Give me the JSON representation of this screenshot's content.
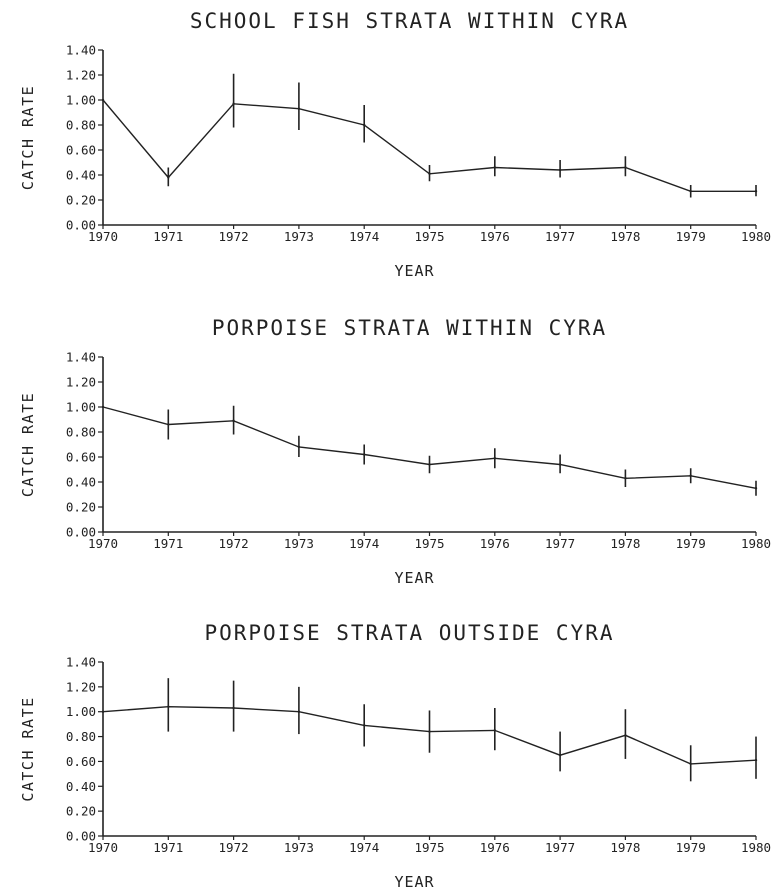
{
  "chart_data": [
    {
      "type": "line",
      "title": "SCHOOL FISH STRATA WITHIN CYRA",
      "xlabel": "YEAR",
      "ylabel": "CATCH RATE",
      "x": [
        1970,
        1971,
        1972,
        1973,
        1974,
        1975,
        1976,
        1977,
        1978,
        1979,
        1980
      ],
      "x_tick_labels": [
        "1970",
        "1971",
        "1972",
        "1973",
        "1974",
        "1975",
        "1976",
        "1977",
        "1978",
        "1979",
        "1980"
      ],
      "y_tick_labels": [
        "0.00",
        "0.20",
        "0.40",
        "0.60",
        "0.80",
        "1.00",
        "1.20",
        "1.40"
      ],
      "ylim": [
        0,
        1.4
      ],
      "xlim": [
        1970,
        1980
      ],
      "grid": false,
      "series": [
        {
          "values": [
            1.0,
            0.38,
            0.97,
            0.93,
            0.8,
            0.41,
            0.46,
            0.44,
            0.46,
            0.27,
            0.27
          ],
          "error_low": [
            null,
            0.31,
            0.78,
            0.76,
            0.66,
            0.35,
            0.39,
            0.38,
            0.39,
            0.22,
            0.23
          ],
          "error_high": [
            null,
            0.46,
            1.21,
            1.14,
            0.96,
            0.48,
            0.55,
            0.52,
            0.55,
            0.32,
            0.32
          ]
        }
      ]
    },
    {
      "type": "line",
      "title": "PORPOISE STRATA WITHIN CYRA",
      "xlabel": "YEAR",
      "ylabel": "CATCH RATE",
      "x": [
        1970,
        1971,
        1972,
        1973,
        1974,
        1975,
        1976,
        1977,
        1978,
        1979,
        1980
      ],
      "x_tick_labels": [
        "1970",
        "1971",
        "1972",
        "1973",
        "1974",
        "1975",
        "1976",
        "1977",
        "1978",
        "1979",
        "1980"
      ],
      "y_tick_labels": [
        "0.00",
        "0.20",
        "0.40",
        "0.60",
        "0.80",
        "1.00",
        "1.20",
        "1.40"
      ],
      "ylim": [
        0,
        1.4
      ],
      "xlim": [
        1970,
        1980
      ],
      "grid": false,
      "series": [
        {
          "values": [
            1.0,
            0.86,
            0.89,
            0.68,
            0.62,
            0.54,
            0.59,
            0.54,
            0.43,
            0.45,
            0.35
          ],
          "error_low": [
            null,
            0.74,
            0.78,
            0.6,
            0.54,
            0.47,
            0.51,
            0.47,
            0.36,
            0.39,
            0.29
          ],
          "error_high": [
            null,
            0.98,
            1.01,
            0.77,
            0.7,
            0.61,
            0.67,
            0.62,
            0.5,
            0.51,
            0.41
          ]
        }
      ]
    },
    {
      "type": "line",
      "title": "PORPOISE STRATA OUTSIDE CYRA",
      "xlabel": "YEAR",
      "ylabel": "CATCH RATE",
      "x": [
        1970,
        1971,
        1972,
        1973,
        1974,
        1975,
        1976,
        1977,
        1978,
        1979,
        1980
      ],
      "x_tick_labels": [
        "1970",
        "1971",
        "1972",
        "1973",
        "1974",
        "1975",
        "1976",
        "1977",
        "1978",
        "1979",
        "1980"
      ],
      "y_tick_labels": [
        "0.00",
        "0.20",
        "0.40",
        "0.60",
        "0.80",
        "1.00",
        "1.20",
        "1.40"
      ],
      "ylim": [
        0,
        1.4
      ],
      "xlim": [
        1970,
        1980
      ],
      "grid": false,
      "series": [
        {
          "values": [
            1.0,
            1.04,
            1.03,
            1.0,
            0.89,
            0.84,
            0.85,
            0.65,
            0.81,
            0.58,
            0.61
          ],
          "error_low": [
            null,
            0.84,
            0.84,
            0.82,
            0.72,
            0.67,
            0.69,
            0.52,
            0.62,
            0.44,
            0.46
          ],
          "error_high": [
            null,
            1.27,
            1.25,
            1.2,
            1.06,
            1.01,
            1.03,
            0.84,
            1.02,
            0.73,
            0.8
          ]
        }
      ]
    }
  ]
}
